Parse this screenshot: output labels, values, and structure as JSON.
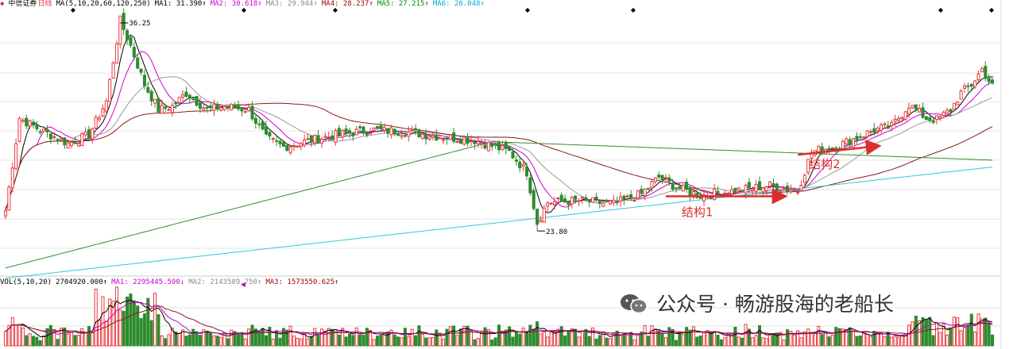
{
  "header": {
    "stock_name": "中信证券",
    "period": "日线",
    "ma_params": "MA(5,10,20,60,120,250)",
    "ma_values": [
      {
        "label": "MA1: 31.390↑",
        "color": "#000000"
      },
      {
        "label": "MA2: 30.618↑",
        "color": "#cc00cc"
      },
      {
        "label": "MA3: 29.944↑",
        "color": "#888888"
      },
      {
        "label": "MA4: 28.237↑",
        "color": "#990000"
      },
      {
        "label": "MA5: 27.215↑",
        "color": "#008800"
      },
      {
        "label": "MA6: 26.048↑",
        "color": "#00aacc"
      }
    ]
  },
  "volume_header": {
    "params": "VOL(5,10,20)",
    "values": [
      {
        "label": "2704920.000↑",
        "color": "#000000"
      },
      {
        "label": "MA1: 2295445.500↓",
        "color": "#cc00cc"
      },
      {
        "label": "MA2: 2143589.750↑",
        "color": "#888888"
      },
      {
        "label": "MA3: 1573550.625↑",
        "color": "#990000"
      }
    ]
  },
  "watermark": "公众号 · 畅游股海的老船长",
  "colors": {
    "up": "#e8383d",
    "down": "#2e8b2e",
    "arrow": "#d9302e",
    "grid": "#e6e6e6"
  },
  "chart_data": {
    "type": "candlestick",
    "title": "中信证券 日线",
    "y_range": [
      21.5,
      37.0
    ],
    "high_label": "36.25",
    "low_label": "23.80",
    "anchor_prices": [
      [
        0,
        25.0
      ],
      [
        4,
        30.5
      ],
      [
        10,
        29.8
      ],
      [
        18,
        29.0
      ],
      [
        24,
        29.5
      ],
      [
        29,
        31.5
      ],
      [
        33,
        36.3
      ],
      [
        36,
        34.8
      ],
      [
        40,
        32.5
      ],
      [
        44,
        31.0
      ],
      [
        48,
        31.2
      ],
      [
        52,
        32.0
      ],
      [
        58,
        31.0
      ],
      [
        63,
        31.2
      ],
      [
        70,
        31.0
      ],
      [
        75,
        29.3
      ],
      [
        80,
        28.8
      ],
      [
        88,
        29.2
      ],
      [
        95,
        29.5
      ],
      [
        105,
        29.8
      ],
      [
        115,
        29.7
      ],
      [
        125,
        29.4
      ],
      [
        135,
        29.2
      ],
      [
        145,
        28.5
      ],
      [
        150,
        27.3
      ],
      [
        153,
        24.3
      ],
      [
        156,
        25.5
      ],
      [
        165,
        25.6
      ],
      [
        175,
        25.4
      ],
      [
        183,
        26.0
      ],
      [
        188,
        27.0
      ],
      [
        193,
        26.4
      ],
      [
        200,
        25.9
      ],
      [
        210,
        26.2
      ],
      [
        220,
        26.5
      ],
      [
        228,
        26.2
      ],
      [
        232,
        28.5
      ],
      [
        240,
        28.9
      ],
      [
        250,
        29.8
      ],
      [
        255,
        30.0
      ],
      [
        260,
        31.3
      ],
      [
        265,
        30.5
      ],
      [
        268,
        30.4
      ],
      [
        272,
        31.0
      ],
      [
        275,
        32.0
      ],
      [
        278,
        32.5
      ],
      [
        281,
        33.4
      ],
      [
        284,
        32.4
      ]
    ],
    "bar_count": 285,
    "moving_averages": [
      "MA5",
      "MA10",
      "MA20",
      "MA60",
      "MA120",
      "MA250"
    ],
    "annotations": [
      {
        "text": "结构1",
        "from_bar": 190,
        "to_bar": 224,
        "price": 26.0
      },
      {
        "text": "结构2",
        "from_bar": 228,
        "to_bar": 251,
        "price": 28.7
      }
    ],
    "grid": true,
    "legend": "top-left"
  }
}
